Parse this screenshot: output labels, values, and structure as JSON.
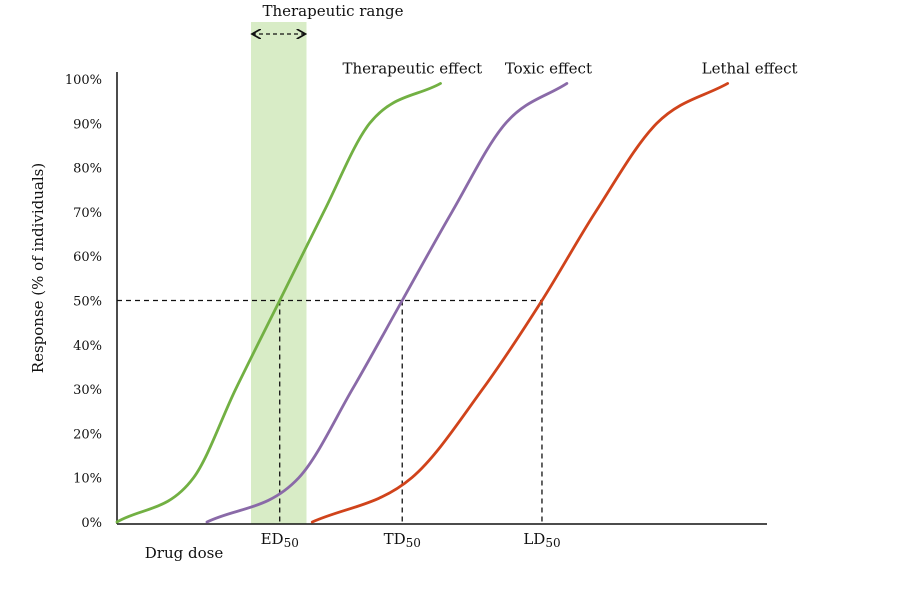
{
  "chart_data": {
    "type": "line",
    "title": "",
    "xlabel": "Drug dose",
    "ylabel": "Response (% of individuals)",
    "ylim": [
      0,
      100
    ],
    "yticks": [
      "0%",
      "10%",
      "20%",
      "30%",
      "40%",
      "50%",
      "60%",
      "70%",
      "80%",
      "90%",
      "100%"
    ],
    "x_axis_ticks_shown": false,
    "grid": false,
    "series": [
      {
        "name": "Therapeutic effect",
        "color": "#72b043",
        "points": [
          [
            0.0,
            0
          ],
          [
            4.0,
            10
          ],
          [
            6.2,
            30
          ],
          [
            8.5,
            50
          ],
          [
            10.8,
            70
          ],
          [
            13.2,
            90
          ],
          [
            16.9,
            99
          ]
        ]
      },
      {
        "name": "Toxic effect",
        "color": "#8a6aa8",
        "points": [
          [
            4.7,
            0
          ],
          [
            9.5,
            10
          ],
          [
            12.3,
            30
          ],
          [
            14.9,
            50
          ],
          [
            17.5,
            70
          ],
          [
            20.3,
            90
          ],
          [
            23.5,
            99
          ]
        ]
      },
      {
        "name": "Lethal effect",
        "color": "#d0431b",
        "points": [
          [
            10.2,
            0
          ],
          [
            15.4,
            10
          ],
          [
            19.1,
            30
          ],
          [
            22.2,
            50
          ],
          [
            25.0,
            70
          ],
          [
            28.2,
            90
          ],
          [
            31.9,
            99
          ]
        ]
      }
    ],
    "markers": [
      {
        "label": "ED",
        "subscript": "50",
        "x": 8.5,
        "y": 50
      },
      {
        "label": "TD",
        "subscript": "50",
        "x": 14.9,
        "y": 50
      },
      {
        "label": "LD",
        "subscript": "50",
        "x": 22.2,
        "y": 50
      }
    ],
    "therapeutic_range": {
      "label": "Therapeutic range",
      "x_start": 7.0,
      "x_end": 9.9,
      "color": "#d8ecc6"
    },
    "x_domain": [
      0,
      35
    ]
  }
}
